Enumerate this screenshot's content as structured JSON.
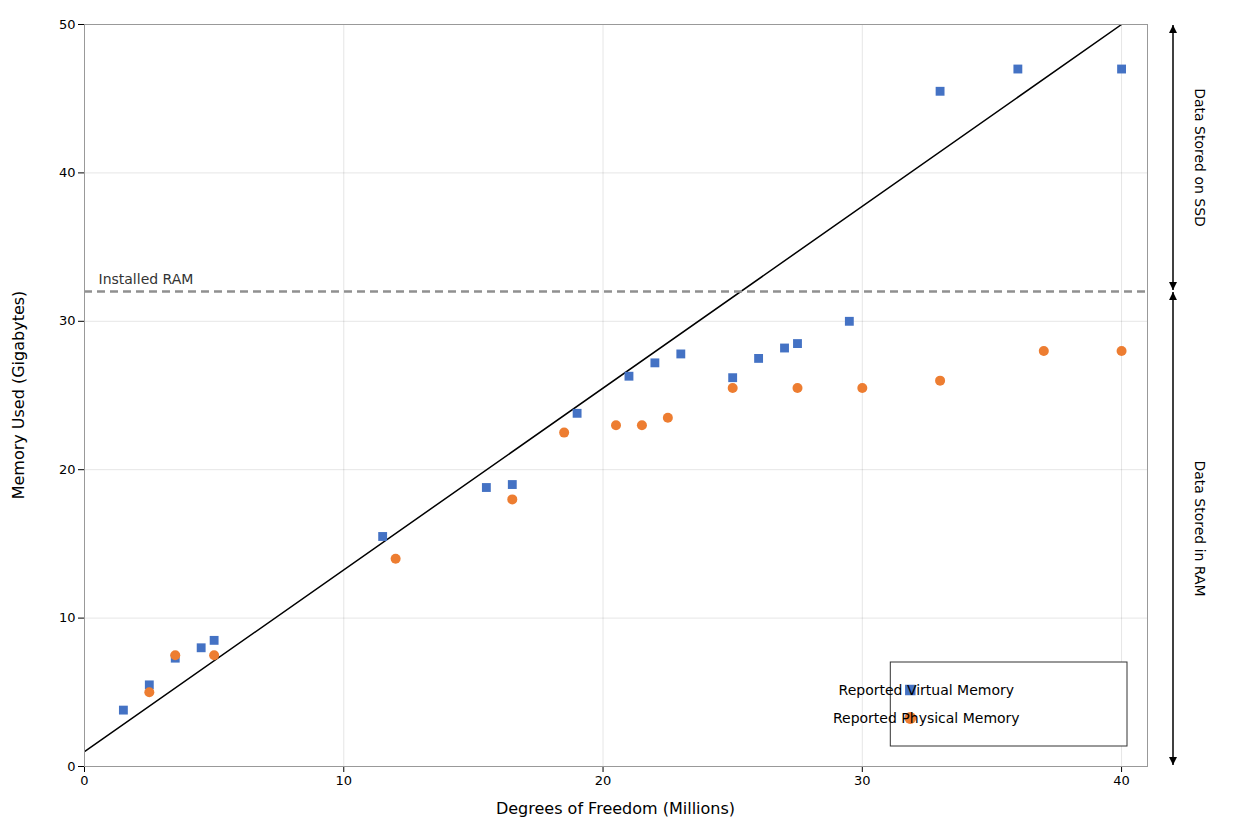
{
  "chart_data": {
    "type": "scatter",
    "xlabel": "Degrees of Freedom (Millions)",
    "ylabel": "Memory Used (Gigabytes)",
    "xlim": [
      0,
      41
    ],
    "xticks": [
      0,
      10,
      20,
      30,
      40
    ],
    "ylim": [
      0,
      50
    ],
    "yticks": [
      0,
      10,
      20,
      30,
      40,
      50
    ],
    "grid": true,
    "legend": "lower right",
    "series": [
      {
        "name": "Reported Virtual Memory",
        "color": "#4472C4",
        "marker": "square",
        "x": [
          1.5,
          2.5,
          3.5,
          4.5,
          5.0,
          11.5,
          15.5,
          16.5,
          19.0,
          21.0,
          22.0,
          23.0,
          25.0,
          26.0,
          27.0,
          27.5,
          29.5,
          33.0,
          36.0,
          40.0
        ],
        "values": [
          3.8,
          5.5,
          7.3,
          8.0,
          8.5,
          15.5,
          18.8,
          19.0,
          23.8,
          26.3,
          27.2,
          27.8,
          26.2,
          27.5,
          28.2,
          28.5,
          30.0,
          45.5,
          47.0,
          47.0
        ]
      },
      {
        "name": "Reported Physical Memory",
        "color": "#ED7D31",
        "marker": "circle",
        "x": [
          2.5,
          3.5,
          5.0,
          12.0,
          16.5,
          18.5,
          20.5,
          21.5,
          22.5,
          25.0,
          27.5,
          30.0,
          33.0,
          37.0,
          40.0
        ],
        "values": [
          5.0,
          7.5,
          7.5,
          14.0,
          18.0,
          22.5,
          23.0,
          23.0,
          23.5,
          25.5,
          25.5,
          25.5,
          26.0,
          28.0,
          28.0
        ]
      }
    ],
    "trend_line": {
      "x": [
        0,
        40
      ],
      "values": [
        1.0,
        50.0
      ],
      "color": "#000000",
      "line_style": "solid"
    },
    "reference_line": {
      "y": 32.0,
      "label": "Installed RAM",
      "color": "#909090",
      "line_style": "dashed"
    },
    "annotations": [
      {
        "text": "Data Stored on SSD",
        "y_range": [
          32.0,
          50
        ]
      },
      {
        "text": "Data Stored in RAM",
        "y_range": [
          0,
          32.0
        ]
      }
    ]
  }
}
